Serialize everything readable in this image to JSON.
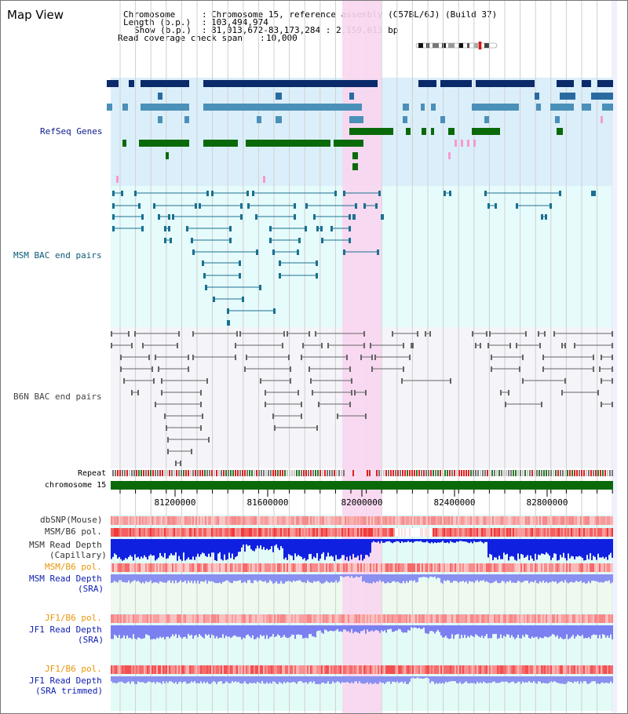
{
  "page": {
    "title": "Map View"
  },
  "info": {
    "chromosome_key": "Chromosome",
    "chromosome_value": "Chromosome 15, reference assembly (C57BL/6J) (Build 37)",
    "length_key": "Length (b.p.)",
    "length_value": "103,494,974",
    "show_key": "Show (b.p.)",
    "show_value": "81,013,672-83,173,284 : 2,159,613 bp",
    "span_key": "Read coverage check span",
    "span_value": "10,000"
  },
  "tracks": {
    "refseq": "RefSeq Genes",
    "msm_bac": "MSM BAC end pairs",
    "b6n_bac": "B6N BAC end pairs",
    "repeat": "Repeat",
    "chromosome": "chromosome 15",
    "dbsnp": "dbSNP(Mouse)",
    "msm_b6_pol": "MSM/B6 pol.",
    "msm_depth_cap_1": "MSM Read Depth",
    "msm_depth_cap_2": "(Capillary)",
    "msm_b6_pol_sra": "MSM/B6 pol.",
    "msm_depth_sra_1": "MSM Read Depth",
    "msm_depth_sra_2": "(SRA)",
    "jf1_b6_pol": "JF1/B6 pol.",
    "jf1_depth_sra_1": "JF1 Read Depth",
    "jf1_depth_sra_2": "(SRA)",
    "jf1_b6_pol_trim": "JF1/B6 pol.",
    "jf1_depth_trim_1": "JF1 Read Depth",
    "jf1_depth_trim_2": "(SRA trimmed)"
  },
  "axis": {
    "ticks": [
      "81200000",
      "81600000",
      "82000000",
      "82400000",
      "82800000"
    ]
  },
  "colors": {
    "refseq_bg": "#dbeffa",
    "msm_bg": "#e6fbfb",
    "b6n_bg": "#f4f4f9",
    "highlight": "#f8d6f0",
    "label_navy": "#0c1a8c",
    "label_teal": "#0c5a78",
    "label_gray": "#444444",
    "label_orange": "#e8960a",
    "label_blue": "#1020b0"
  }
}
